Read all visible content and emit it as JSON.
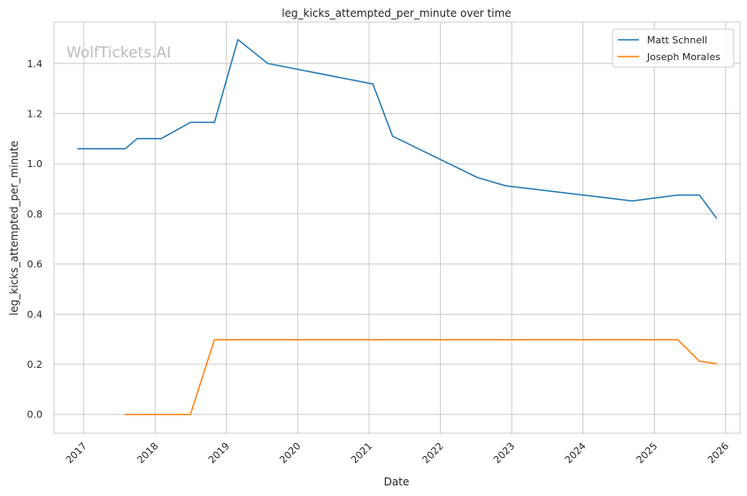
{
  "chart_data": {
    "type": "line",
    "title": "leg_kicks_attempted_per_minute over time",
    "xlabel": "Date",
    "ylabel": "leg_kicks_attempted_per_minute",
    "watermark": "WolfTickets.AI",
    "xlim": [
      "2016-08-01",
      "2026-03-15"
    ],
    "ylim": [
      -0.075,
      1.565
    ],
    "x_ticks": [
      "2017-01-01",
      "2018-01-01",
      "2019-01-01",
      "2020-01-01",
      "2021-01-01",
      "2022-01-01",
      "2023-01-01",
      "2024-01-01",
      "2025-01-01",
      "2026-01-01"
    ],
    "x_tick_labels": [
      "2017",
      "2018",
      "2019",
      "2020",
      "2021",
      "2022",
      "2023",
      "2024",
      "2025",
      "2026"
    ],
    "y_ticks": [
      0.0,
      0.2,
      0.4,
      0.6,
      0.8,
      1.0,
      1.2,
      1.4
    ],
    "y_tick_labels": [
      "0.0",
      "0.2",
      "0.4",
      "0.6",
      "0.8",
      "1.0",
      "1.2",
      "1.4"
    ],
    "grid": true,
    "legend_position": "top-right",
    "series": [
      {
        "name": "Matt Schnell",
        "color": "#1f77b4",
        "points": [
          [
            "2016-12-01",
            1.06
          ],
          [
            "2017-08-01",
            1.06
          ],
          [
            "2017-10-01",
            1.1
          ],
          [
            "2018-02-01",
            1.1
          ],
          [
            "2018-07-01",
            1.165
          ],
          [
            "2018-11-01",
            1.165
          ],
          [
            "2019-03-01",
            1.495
          ],
          [
            "2019-08-01",
            1.4
          ],
          [
            "2021-01-20",
            1.318
          ],
          [
            "2021-05-01",
            1.11
          ],
          [
            "2022-07-10",
            0.945
          ],
          [
            "2022-12-01",
            0.912
          ],
          [
            "2024-09-10",
            0.852
          ],
          [
            "2025-05-01",
            0.875
          ],
          [
            "2025-08-20",
            0.875
          ],
          [
            "2025-11-15",
            0.783
          ]
        ]
      },
      {
        "name": "Joseph Morales",
        "color": "#ff7f0e",
        "points": [
          [
            "2017-08-01",
            0.0
          ],
          [
            "2018-07-01",
            0.0
          ],
          [
            "2018-11-01",
            0.298
          ],
          [
            "2025-05-01",
            0.298
          ],
          [
            "2025-08-20",
            0.212
          ],
          [
            "2025-11-15",
            0.203
          ]
        ]
      }
    ]
  }
}
